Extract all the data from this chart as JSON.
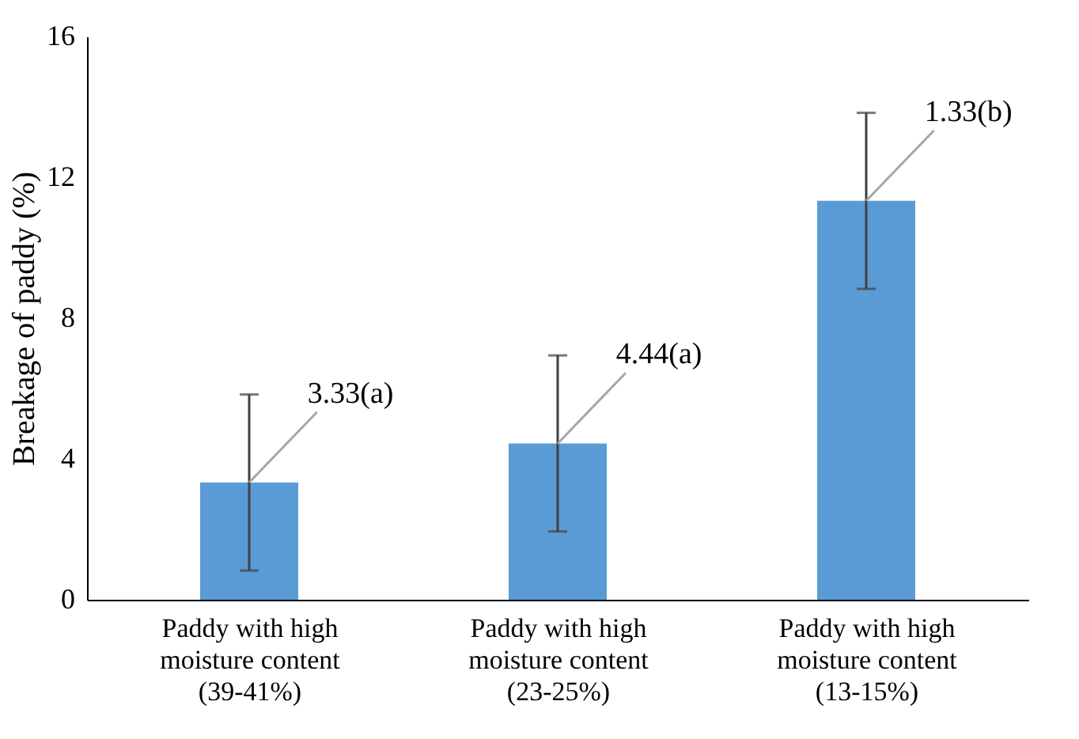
{
  "chart_data": {
    "type": "bar",
    "ylabel": "Breakage of paddy (%)",
    "categories": [
      "Paddy with high moisture content (39-41%)",
      "Paddy with high moisture content (23-25%)",
      "Paddy with high moisture content (13-15%)"
    ],
    "values": [
      3.33,
      4.44,
      11.33
    ],
    "color": "#5b9bd5",
    "errors": [
      2.5,
      2.5,
      2.5
    ],
    "ylim": [
      0,
      16
    ],
    "yticks": [
      0,
      4,
      8,
      12,
      16
    ],
    "grid": false,
    "annotations": [
      {
        "text": "3.33(a)",
        "x": "Paddy with high moisture content (39-41%)",
        "y": 3.33
      },
      {
        "text": "4.44(a)",
        "x": "Paddy with high moisture content (23-25%)",
        "y": 4.44
      },
      {
        "text": "1.33(b)",
        "x": "Paddy with high moisture content (13-15%)",
        "y": 11.33
      }
    ]
  }
}
